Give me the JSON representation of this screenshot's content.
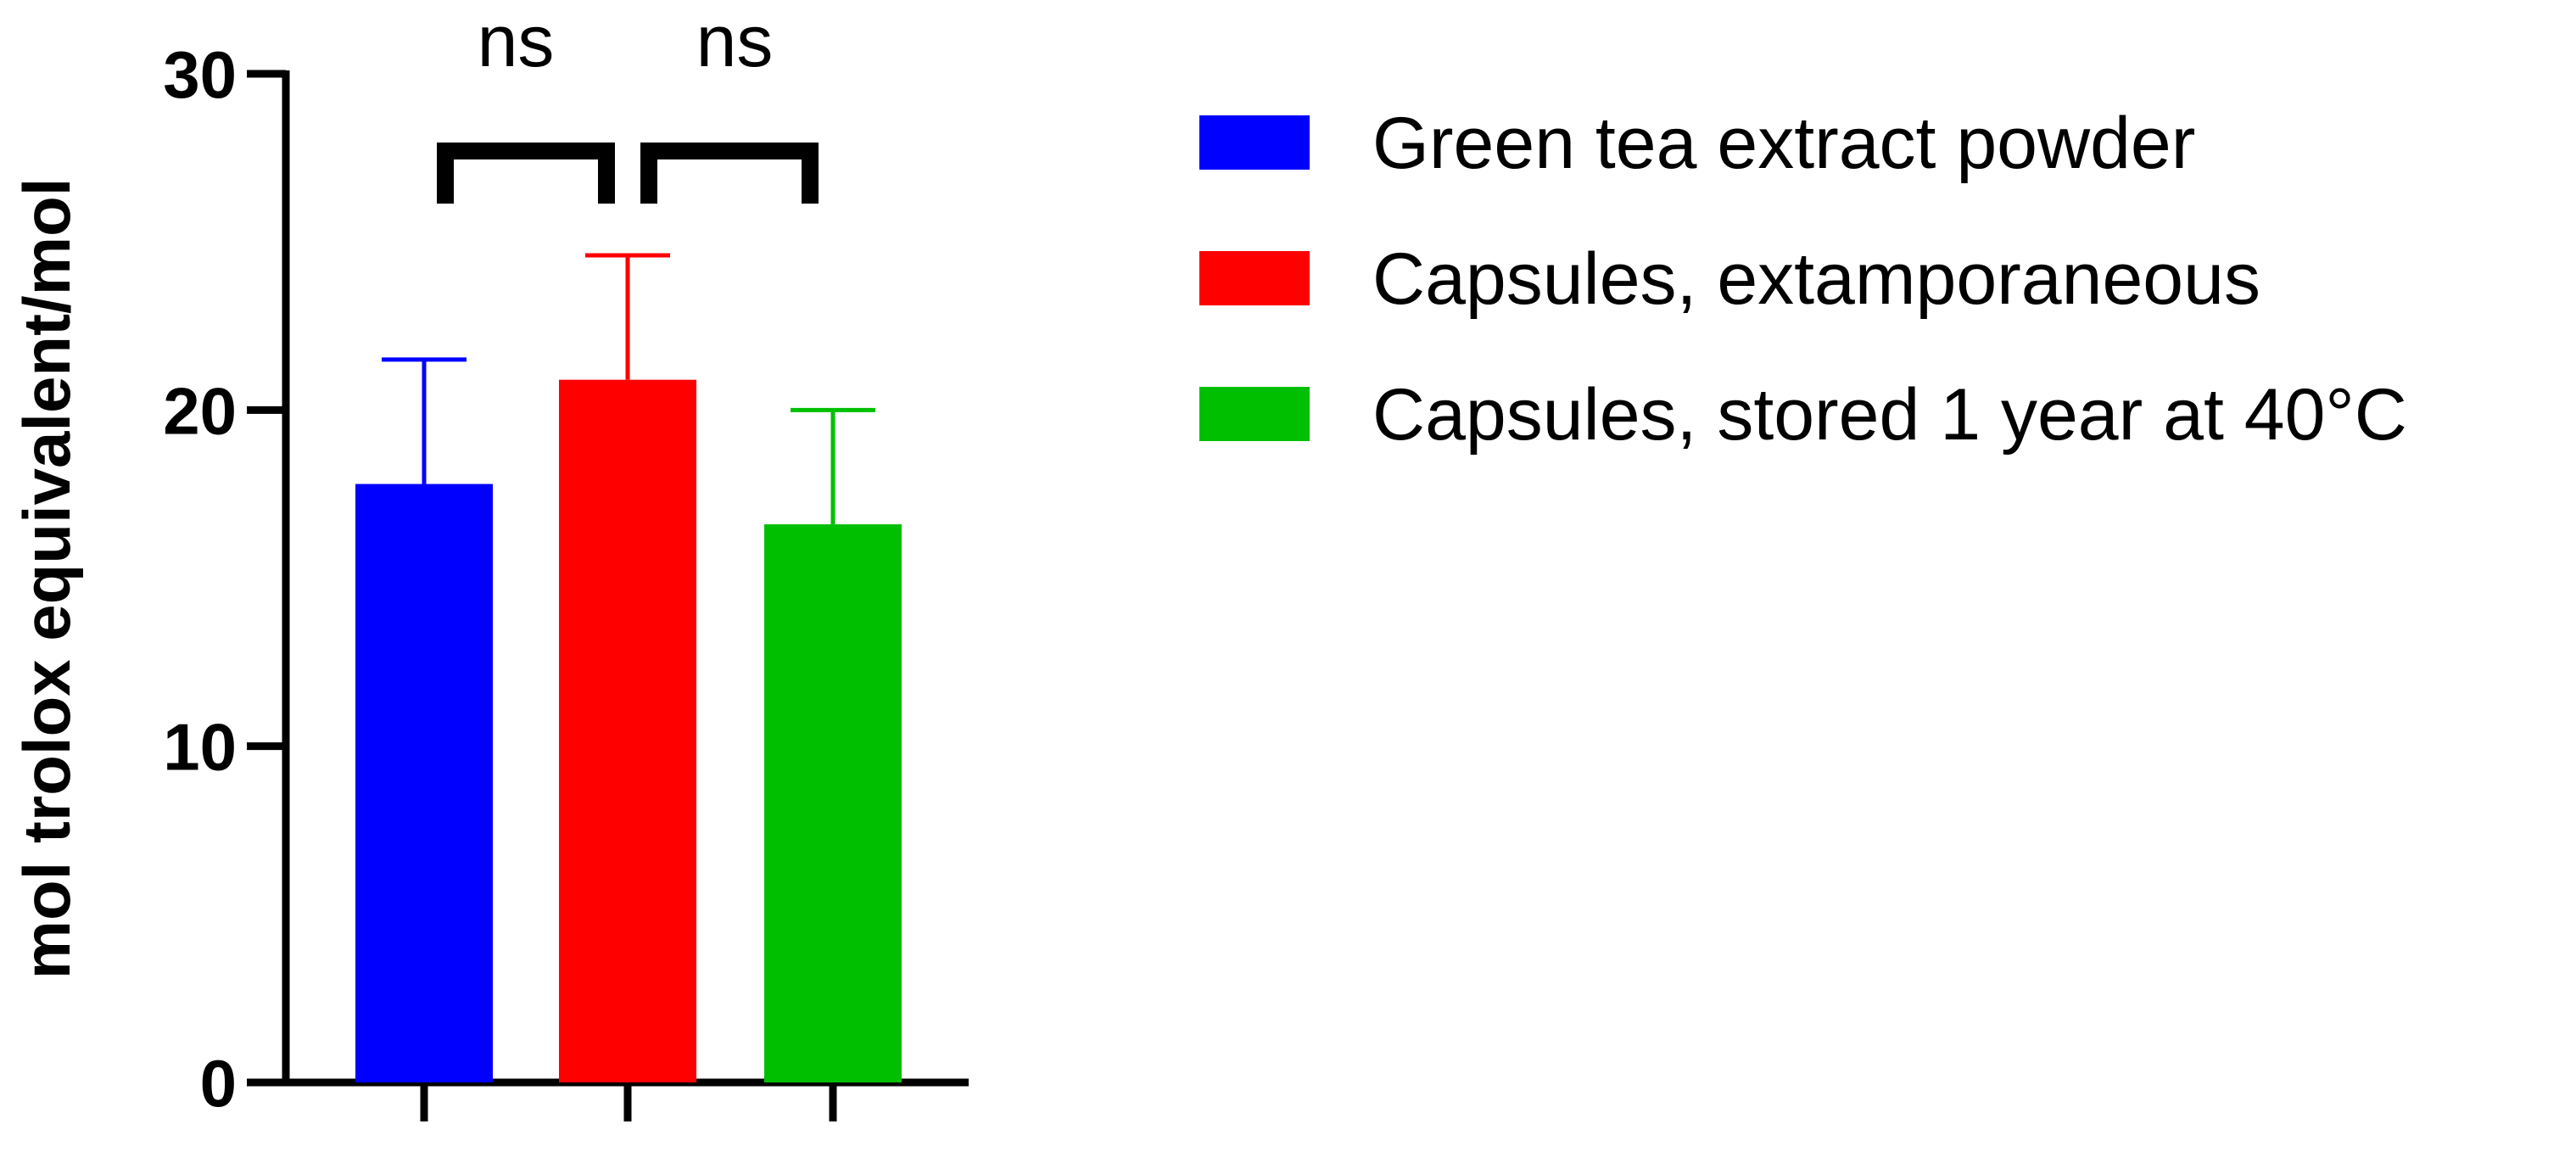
{
  "chart_data": {
    "type": "bar",
    "title": "",
    "xlabel": "",
    "ylabel": "mol trolox equivalent/mol",
    "ylim": [
      0,
      30
    ],
    "yticks": [
      0,
      10,
      20,
      30
    ],
    "ytick_labels": [
      "0",
      "10",
      "20",
      "30"
    ],
    "grid": false,
    "legend_position": "right",
    "categories": [
      "Green tea extract powder",
      "Capsules, extamporaneous",
      "Capsules, stored 1 year at 40°C"
    ],
    "values": [
      17.8,
      20.9,
      16.6
    ],
    "errors": [
      3.7,
      3.7,
      3.4
    ],
    "colors": [
      "#0000ff",
      "#ff0000",
      "#00bf00"
    ],
    "comparisons": [
      {
        "between": [
          0,
          1
        ],
        "label": "ns"
      },
      {
        "between": [
          1,
          2
        ],
        "label": "ns"
      }
    ]
  }
}
